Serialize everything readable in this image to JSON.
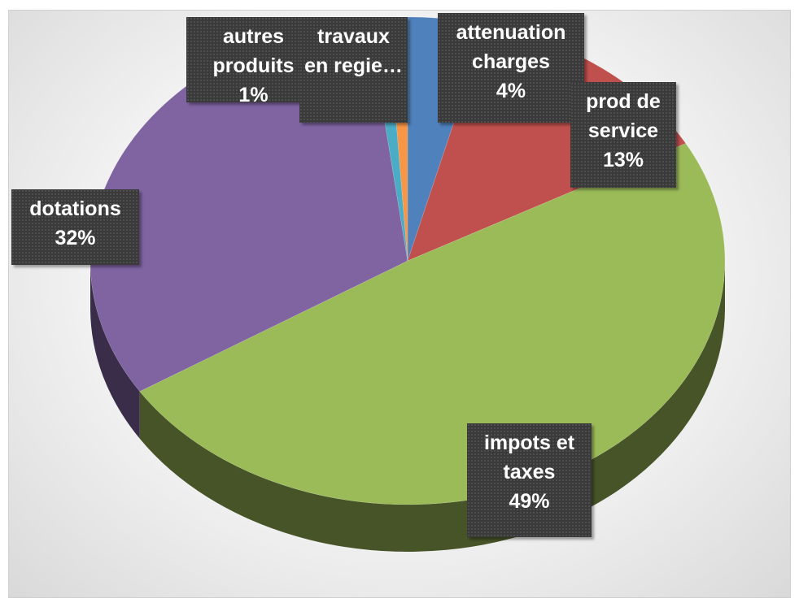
{
  "chart_data": {
    "type": "pie",
    "categories": [
      "attenuation charges",
      "prod de service",
      "impots et taxes",
      "dotations",
      "travaux en regie…",
      "autres produits"
    ],
    "values": [
      4,
      13,
      49,
      32,
      1,
      1
    ],
    "value_labels": [
      "4%",
      "13%",
      "49%",
      "32%",
      null,
      "1%"
    ],
    "colors": [
      "#4f81bd",
      "#c0504d",
      "#9bbb59",
      "#8064a2",
      "#4bacc6",
      "#f79646"
    ]
  }
}
